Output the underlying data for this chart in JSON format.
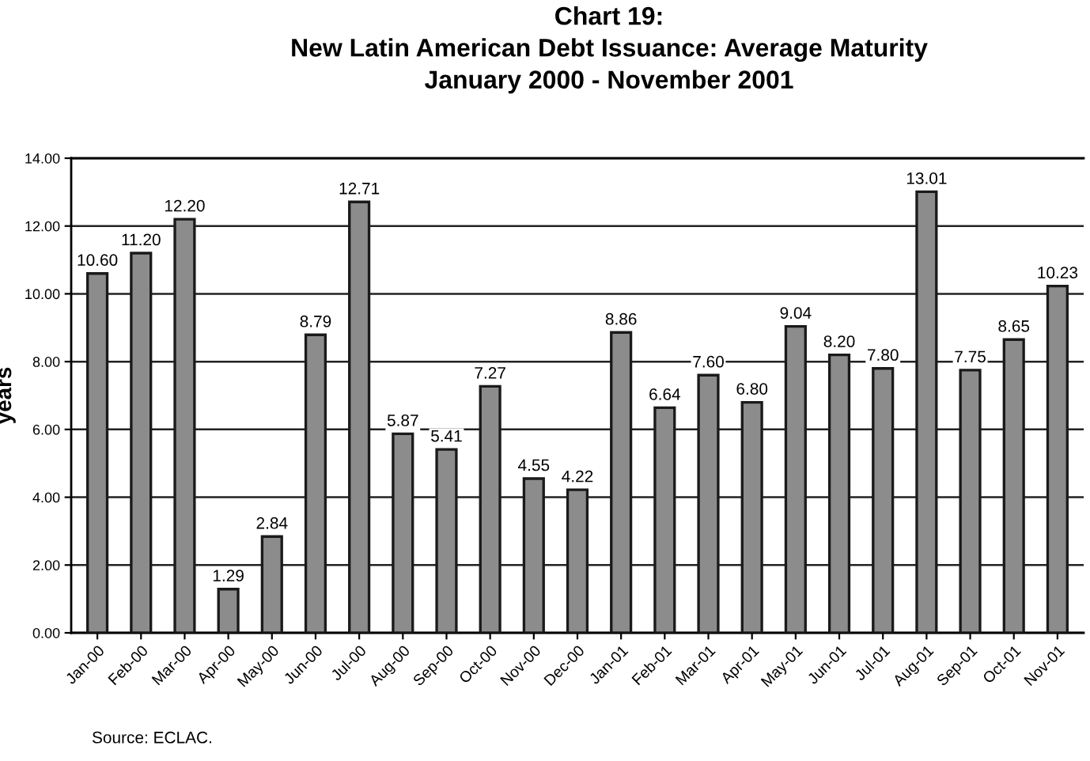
{
  "chart_data": {
    "type": "bar",
    "title": "Chart 19:\nNew Latin American Debt Issuance: Average Maturity\nJanuary 2000 - November 2001",
    "ylabel": "years",
    "categories": [
      "Jan-00",
      "Feb-00",
      "Mar-00",
      "Apr-00",
      "May-00",
      "Jun-00",
      "Jul-00",
      "Aug-00",
      "Sep-00",
      "Oct-00",
      "Nov-00",
      "Dec-00",
      "Jan-01",
      "Feb-01",
      "Mar-01",
      "Apr-01",
      "May-01",
      "Jun-01",
      "Jul-01",
      "Aug-01",
      "Sep-01",
      "Oct-01",
      "Nov-01"
    ],
    "values": [
      10.6,
      11.2,
      12.2,
      1.29,
      2.84,
      8.79,
      12.71,
      5.87,
      5.41,
      7.27,
      4.55,
      4.22,
      8.86,
      6.64,
      7.6,
      6.8,
      9.04,
      8.2,
      7.8,
      13.01,
      7.75,
      8.65,
      10.23
    ],
    "value_labels": [
      "10.60",
      "11.20",
      "12.20",
      "1.29",
      "2.84",
      "8.79",
      "12.71",
      "5.87",
      "5.41",
      "7.27",
      "4.55",
      "4.22",
      "8.86",
      "6.64",
      "7.60",
      "6.80",
      "9.04",
      "8.20",
      "7.80",
      "13.01",
      "7.75",
      "8.65",
      "10.23"
    ],
    "color": "#8c8c8c",
    "ylim": [
      0,
      14
    ],
    "yticks": [
      {
        "value": 0,
        "label": "0.00"
      },
      {
        "value": 2,
        "label": "2.00"
      },
      {
        "value": 4,
        "label": "4.00"
      },
      {
        "value": 6,
        "label": "6.00"
      },
      {
        "value": 8,
        "label": "8.00"
      },
      {
        "value": 10,
        "label": "10.00"
      },
      {
        "value": 12,
        "label": "12.00"
      },
      {
        "value": 14,
        "label": "14.00"
      }
    ],
    "grid": "y",
    "annotations": [
      "Source: ECLAC."
    ]
  }
}
